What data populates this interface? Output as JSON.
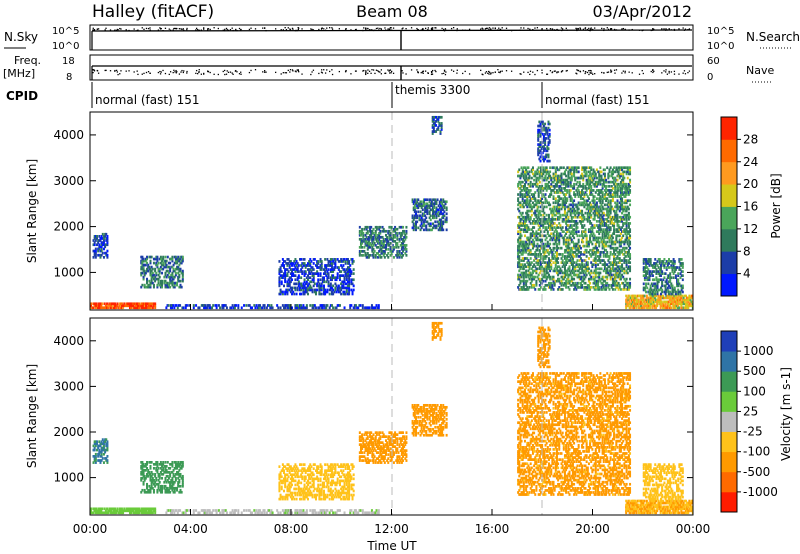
{
  "header": {
    "station": "Halley (fitACF)",
    "beam": "Beam 08",
    "date": "03/Apr/2012"
  },
  "noise_panel": {
    "left_label": "N.Sky",
    "right_label": "N.Search",
    "right_label_style": "dotted",
    "tick_top": "10^5",
    "tick_bottom": "10^0"
  },
  "freq_panel": {
    "left_label_line1": "Freq.",
    "left_label_line2": "[MHz]",
    "left_tick_top": "18",
    "left_tick_bottom": "8",
    "right_label": "Nave",
    "right_label_style": "dotted",
    "right_tick_top": "60",
    "right_tick_bottom": "0"
  },
  "cpid": {
    "label": "CPID",
    "segments": [
      {
        "name": "normal (fast) 151",
        "start_hour": 0
      },
      {
        "name": "themis 3300",
        "start_hour": 12
      },
      {
        "name": "normal (fast) 151",
        "start_hour": 18
      }
    ]
  },
  "power_panel": {
    "ylabel": "Slant Range [km]",
    "yticks": [
      "1000",
      "2000",
      "3000",
      "4000"
    ],
    "colorbar_title": "Power [dB]",
    "colorbar_labels": [
      "4",
      "8",
      "12",
      "16",
      "20",
      "24",
      "28"
    ],
    "colors": [
      "#0018ff",
      "#1c3da8",
      "#2f7a5c",
      "#4aa55a",
      "#d6c81a",
      "#ff9a1f",
      "#ff6a00",
      "#ff2400"
    ]
  },
  "velocity_panel": {
    "ylabel": "Slant Range [km]",
    "yticks": [
      "1000",
      "2000",
      "3000",
      "4000"
    ],
    "colorbar_title": "Velocity [m s-1]",
    "colorbar_labels": [
      "1000",
      "500",
      "100",
      "25",
      "-25",
      "-100",
      "-500",
      "-1000"
    ],
    "colors": [
      "#1f3fb8",
      "#2f74a6",
      "#3c9a55",
      "#6acb3a",
      "#bdbdbd",
      "#ffc21a",
      "#ff9a00",
      "#ff6a00",
      "#ff1c00"
    ]
  },
  "xaxis": {
    "label": "Time UT",
    "ticks": [
      "00:00",
      "04:00",
      "08:00",
      "12:00",
      "16:00",
      "20:00",
      "00:00"
    ]
  },
  "chart_data": {
    "type": "heatmap",
    "title": "Halley (fitACF) Beam 08 03/Apr/2012",
    "xlabel": "Time UT",
    "ylabel": "Slant Range [km]",
    "xlim_hours": [
      0,
      24
    ],
    "ylim_km": [
      180,
      4500
    ],
    "vertical_markers_hours": [
      12,
      18
    ],
    "power_range_db": [
      0,
      30
    ],
    "velocity_range_ms": [
      -1000,
      1000
    ],
    "echo_regions": [
      {
        "t0": 0.0,
        "t1": 2.6,
        "r0": 200,
        "r1": 330,
        "power": 28,
        "velocity": 60
      },
      {
        "t0": 2.0,
        "t1": 3.7,
        "r0": 650,
        "r1": 1350,
        "power": 10,
        "velocity": 300
      },
      {
        "t0": 0.1,
        "t1": 0.7,
        "r0": 1300,
        "r1": 1850,
        "power": 6,
        "velocity": 600
      },
      {
        "t0": 3.0,
        "t1": 11.5,
        "r0": 200,
        "r1": 300,
        "power": 5,
        "velocity": 20
      },
      {
        "t0": 7.5,
        "t1": 10.5,
        "r0": 500,
        "r1": 1300,
        "power": 5,
        "velocity": -50
      },
      {
        "t0": 10.7,
        "t1": 12.6,
        "r0": 1300,
        "r1": 2000,
        "power": 10,
        "velocity": -250
      },
      {
        "t0": 12.8,
        "t1": 14.2,
        "r0": 1900,
        "r1": 2600,
        "power": 8,
        "velocity": -200
      },
      {
        "t0": 13.6,
        "t1": 14.0,
        "r0": 4000,
        "r1": 4400,
        "power": 7,
        "velocity": -300
      },
      {
        "t0": 17.0,
        "t1": 21.5,
        "r0": 600,
        "r1": 3300,
        "power": 12,
        "velocity": -150
      },
      {
        "t0": 17.8,
        "t1": 18.3,
        "r0": 3400,
        "r1": 4300,
        "power": 6,
        "velocity": -300
      },
      {
        "t0": 21.3,
        "t1": 24.0,
        "r0": 200,
        "r1": 500,
        "power": 20,
        "velocity": -100
      },
      {
        "t0": 22.0,
        "t1": 23.6,
        "r0": 500,
        "r1": 1300,
        "power": 10,
        "velocity": -60
      }
    ]
  }
}
